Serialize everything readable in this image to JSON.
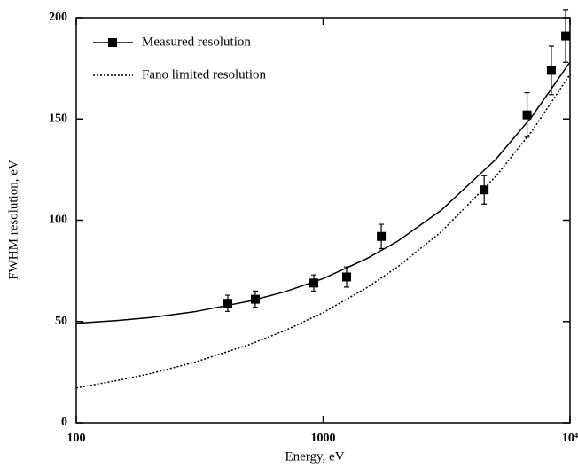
{
  "chart_data": {
    "type": "scatter",
    "xlabel": "Energy, eV",
    "ylabel": "FWHM resolution, eV",
    "xscale": "log",
    "xlim": [
      100,
      10000
    ],
    "xticks": [
      100,
      1000,
      {
        "value": 10000,
        "label": "10⁴"
      }
    ],
    "ylim": [
      0,
      200
    ],
    "yticks": [
      0,
      50,
      100,
      150,
      200
    ],
    "legend": "upper left",
    "series": [
      {
        "name": "Measured resolution",
        "color": "#000000",
        "x": [
          411,
          531,
          917,
          1245,
          1720,
          4490,
          6700,
          8400,
          9600
        ],
        "values": [
          59,
          61,
          69,
          72,
          92,
          115,
          152,
          174,
          191
        ],
        "errors": [
          4,
          4,
          4,
          5,
          6,
          7,
          11,
          12,
          13
        ],
        "fit": {
          "x": [
            100,
            150,
            200,
            300,
            500,
            700,
            1000,
            1500,
            2000,
            3000,
            5000,
            7000,
            10000
          ],
          "values": [
            49.1,
            50.6,
            52.0,
            54.8,
            60.0,
            64.7,
            71.2,
            81.0,
            89.6,
            104.8,
            130.0,
            151.1,
            178.1
          ]
        }
      },
      {
        "name": "Fano limited resolution",
        "color": "#000000",
        "dash": "dotted",
        "x": [
          100,
          150,
          200,
          300,
          500,
          700,
          1000,
          1500,
          2000,
          3000,
          5000,
          7000,
          10000
        ],
        "values": [
          17.2,
          21.1,
          24.3,
          29.8,
          38.5,
          45.5,
          54.4,
          66.6,
          76.9,
          94.2,
          121.6,
          143.9,
          172.0
        ]
      }
    ]
  }
}
